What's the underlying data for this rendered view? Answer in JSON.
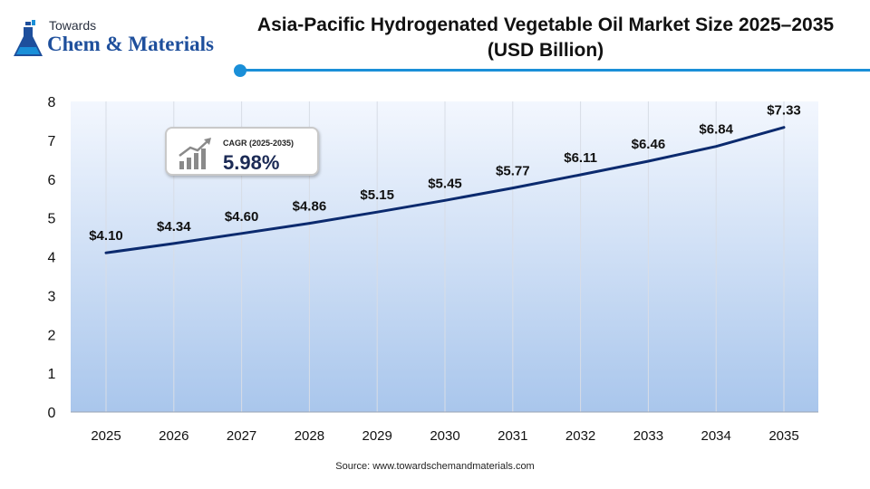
{
  "logo": {
    "line1": "Towards",
    "line2": "Chem & Materials"
  },
  "title": {
    "line1": "Asia-Pacific Hydrogenated Vegetable Oil Market Size 2025–2035",
    "line2": "(USD Billion)"
  },
  "cagr": {
    "label": "CAGR (2025-2035)",
    "value": "5.98%"
  },
  "source": "Source: www.towardschemandmaterials.com",
  "colors": {
    "line": "#0b2a6e",
    "accent": "#1a8fd8",
    "area_top": "#f3f7fe",
    "area_bottom": "#a9c6ec",
    "grid": "#d8dde6"
  },
  "chart_data": {
    "type": "line",
    "x": [
      "2025",
      "2026",
      "2027",
      "2028",
      "2029",
      "2030",
      "2031",
      "2032",
      "2033",
      "2034",
      "2035"
    ],
    "series": [
      {
        "values": [
          4.1,
          4.34,
          4.6,
          4.86,
          5.15,
          5.45,
          5.77,
          6.11,
          6.46,
          6.84,
          7.33
        ]
      }
    ],
    "data_labels": [
      "$4.10",
      "$4.34",
      "$4.60",
      "$4.86",
      "$5.15",
      "$5.45",
      "$5.77",
      "$6.11",
      "$6.46",
      "$6.84",
      "$7.33"
    ],
    "ylim": [
      0,
      8
    ],
    "yticks": [
      "0",
      "1",
      "2",
      "3",
      "4",
      "5",
      "6",
      "7",
      "8"
    ],
    "grid": "vertical",
    "xlabel": "",
    "ylabel": ""
  }
}
